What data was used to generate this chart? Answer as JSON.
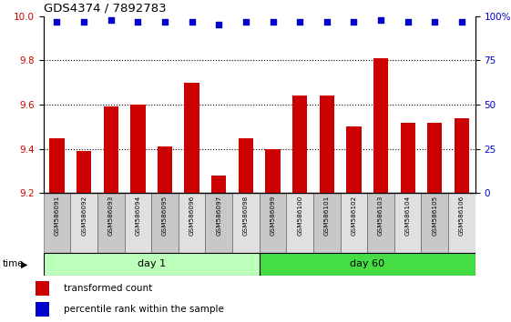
{
  "title": "GDS4374 / 7892783",
  "samples": [
    "GSM586091",
    "GSM586092",
    "GSM586093",
    "GSM586094",
    "GSM586095",
    "GSM586096",
    "GSM586097",
    "GSM586098",
    "GSM586099",
    "GSM586100",
    "GSM586101",
    "GSM586102",
    "GSM586103",
    "GSM586104",
    "GSM586105",
    "GSM586106"
  ],
  "bar_values": [
    9.45,
    9.39,
    9.59,
    9.6,
    9.41,
    9.7,
    9.28,
    9.45,
    9.4,
    9.64,
    9.64,
    9.5,
    9.81,
    9.52,
    9.52,
    9.54
  ],
  "percentile_values": [
    97,
    97,
    98,
    97,
    97,
    97,
    95,
    97,
    97,
    97,
    97,
    97,
    98,
    97,
    97,
    97
  ],
  "bar_color": "#cc0000",
  "dot_color": "#0000cc",
  "ylim_left": [
    9.2,
    10.0
  ],
  "ylim_right": [
    0,
    100
  ],
  "yticks_left": [
    9.2,
    9.4,
    9.6,
    9.8,
    10.0
  ],
  "yticks_right": [
    0,
    25,
    50,
    75,
    100
  ],
  "ytick_labels_right": [
    "0",
    "25",
    "50",
    "75",
    "100%"
  ],
  "grid_values": [
    9.4,
    9.6,
    9.8
  ],
  "day1_label": "day 1",
  "day60_label": "day 60",
  "time_label": "time",
  "legend_bar_label": "transformed count",
  "legend_dot_label": "percentile rank within the sample",
  "day1_color": "#bbffbb",
  "day60_color": "#44dd44",
  "bg_color": "#ffffff",
  "box_colors": [
    "#c8c8c8",
    "#e0e0e0"
  ]
}
